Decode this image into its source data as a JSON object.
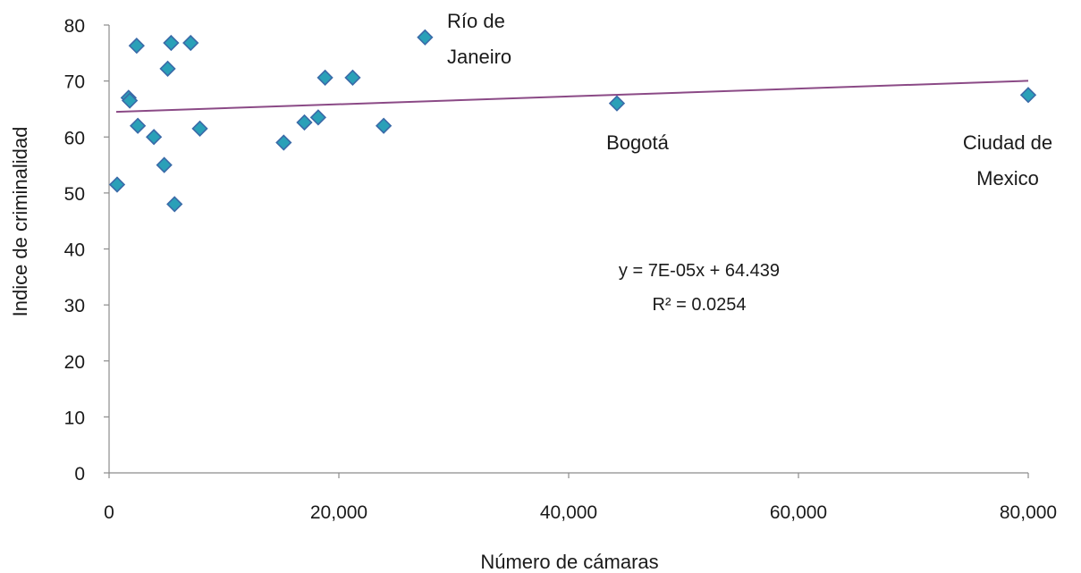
{
  "chart_data": {
    "type": "scatter",
    "xlabel": "Número de cámaras",
    "ylabel": "Indice de criminalidad",
    "xlim": [
      0,
      80000
    ],
    "ylim": [
      0,
      80
    ],
    "x_ticks": [
      0,
      20000,
      40000,
      60000,
      80000
    ],
    "x_tick_labels": [
      "0",
      "20,000",
      "40,000",
      "60,000",
      "80,000"
    ],
    "y_ticks": [
      0,
      10,
      20,
      30,
      40,
      50,
      60,
      70,
      80
    ],
    "y_tick_labels": [
      "0",
      "10",
      "20",
      "30",
      "40",
      "50",
      "60",
      "70",
      "80"
    ],
    "grid": false,
    "legend": "none",
    "marker_color": "#2aa0b8",
    "marker_edge_color": "#3a6aa8",
    "trendline_color": "#8b4a86",
    "points": [
      {
        "x": 700,
        "y": 51.5
      },
      {
        "x": 1700,
        "y": 67
      },
      {
        "x": 1800,
        "y": 66.5
      },
      {
        "x": 2400,
        "y": 76.3
      },
      {
        "x": 2500,
        "y": 62
      },
      {
        "x": 3900,
        "y": 60
      },
      {
        "x": 4800,
        "y": 55
      },
      {
        "x": 5100,
        "y": 72.2
      },
      {
        "x": 5400,
        "y": 76.8
      },
      {
        "x": 5700,
        "y": 48
      },
      {
        "x": 7100,
        "y": 76.8
      },
      {
        "x": 7900,
        "y": 61.5
      },
      {
        "x": 15200,
        "y": 59
      },
      {
        "x": 17000,
        "y": 62.6
      },
      {
        "x": 18200,
        "y": 63.5
      },
      {
        "x": 18800,
        "y": 70.6
      },
      {
        "x": 21200,
        "y": 70.6
      },
      {
        "x": 23900,
        "y": 62
      },
      {
        "x": 27500,
        "y": 77.8
      },
      {
        "x": 44200,
        "y": 66
      },
      {
        "x": 80000,
        "y": 67.5
      }
    ],
    "annotations": [
      {
        "lines": [
          "Río de",
          "Janeiro"
        ]
      },
      {
        "lines": [
          "Bogotá"
        ]
      },
      {
        "lines": [
          "Ciudad de",
          "Mexico"
        ]
      }
    ],
    "trendline": {
      "slope": 7e-05,
      "intercept": 64.439,
      "equation": "y = 7E-05x + 64.439",
      "r2_label": "R² = 0.0254"
    }
  }
}
